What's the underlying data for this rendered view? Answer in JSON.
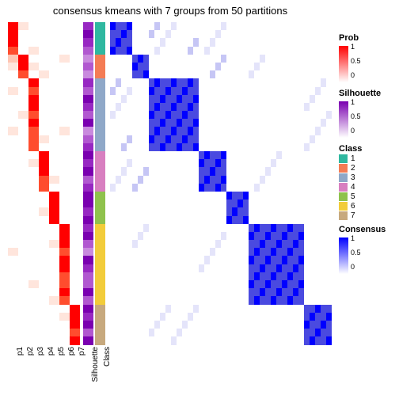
{
  "title": "consensus kmeans with 7 groups from 50 partitions",
  "title_fontsize": 13,
  "layout": {
    "n_rows": 40,
    "prob_cols": 7,
    "cell_h": 10.2,
    "prob_col_w": 13,
    "sil_col_w": 13,
    "class_col_w": 13,
    "heatmap_col_w": 7.0,
    "gap_after_prob": 4,
    "gap_after_sil": 2,
    "gap_after_class": 6
  },
  "palettes": {
    "prob": [
      "#ffffff",
      "#ffe5dc",
      "#ffc5b3",
      "#ffa18a",
      "#ff7a5c",
      "#ff4d2e",
      "#ff0000"
    ],
    "silhouette": [
      "#ffffff",
      "#f0e0f5",
      "#ddb8ea",
      "#c98ade",
      "#b158d0",
      "#9728c2",
      "#7a00b0"
    ],
    "consensus": [
      "#ffffff",
      "#e4e4fa",
      "#c6c6f5",
      "#a4a4ef",
      "#7d7de8",
      "#4a4ae0",
      "#0000ff"
    ]
  },
  "class_colors": {
    "1": "#2fb8a0",
    "2": "#f47c55",
    "3": "#8fa8c8",
    "4": "#d87fc0",
    "5": "#8fc24d",
    "6": "#f2cc3a",
    "7": "#c7a97e"
  },
  "group_sizes": [
    4,
    3,
    9,
    5,
    4,
    10,
    5
  ],
  "prob_matrix": [
    [
      6,
      1,
      0,
      0,
      0,
      0,
      0
    ],
    [
      6,
      0,
      0,
      0,
      0,
      0,
      0
    ],
    [
      6,
      0,
      0,
      0,
      0,
      0,
      0
    ],
    [
      5,
      0,
      1,
      0,
      0,
      0,
      0
    ],
    [
      2,
      6,
      0,
      0,
      0,
      1,
      0
    ],
    [
      1,
      6,
      1,
      0,
      0,
      0,
      0
    ],
    [
      0,
      5,
      0,
      1,
      0,
      0,
      0
    ],
    [
      0,
      0,
      6,
      0,
      0,
      0,
      0
    ],
    [
      1,
      0,
      5,
      0,
      0,
      0,
      0
    ],
    [
      0,
      0,
      6,
      0,
      0,
      0,
      0
    ],
    [
      0,
      0,
      6,
      0,
      0,
      0,
      0
    ],
    [
      0,
      1,
      5,
      0,
      0,
      0,
      0
    ],
    [
      0,
      0,
      6,
      0,
      0,
      0,
      0
    ],
    [
      1,
      0,
      5,
      0,
      0,
      1,
      0
    ],
    [
      0,
      0,
      5,
      1,
      0,
      0,
      0
    ],
    [
      0,
      0,
      5,
      0,
      0,
      0,
      0
    ],
    [
      0,
      0,
      0,
      6,
      0,
      0,
      0
    ],
    [
      0,
      0,
      1,
      6,
      0,
      0,
      0
    ],
    [
      0,
      0,
      0,
      6,
      0,
      0,
      0
    ],
    [
      0,
      0,
      0,
      5,
      1,
      0,
      0
    ],
    [
      0,
      0,
      0,
      5,
      0,
      0,
      0
    ],
    [
      0,
      0,
      0,
      0,
      6,
      0,
      0
    ],
    [
      0,
      0,
      0,
      0,
      6,
      0,
      0
    ],
    [
      0,
      0,
      0,
      1,
      6,
      0,
      0
    ],
    [
      0,
      0,
      0,
      0,
      6,
      0,
      0
    ],
    [
      0,
      0,
      0,
      0,
      0,
      6,
      0
    ],
    [
      0,
      0,
      0,
      0,
      0,
      6,
      0
    ],
    [
      0,
      0,
      0,
      0,
      1,
      6,
      0
    ],
    [
      1,
      0,
      0,
      0,
      0,
      5,
      0
    ],
    [
      0,
      0,
      0,
      0,
      0,
      6,
      0
    ],
    [
      0,
      0,
      0,
      0,
      0,
      6,
      0
    ],
    [
      0,
      0,
      0,
      0,
      0,
      5,
      0
    ],
    [
      0,
      0,
      1,
      0,
      0,
      5,
      0
    ],
    [
      0,
      0,
      0,
      0,
      0,
      6,
      0
    ],
    [
      0,
      0,
      0,
      0,
      1,
      5,
      0
    ],
    [
      0,
      0,
      0,
      0,
      0,
      0,
      6
    ],
    [
      0,
      0,
      0,
      0,
      0,
      1,
      6
    ],
    [
      0,
      0,
      0,
      0,
      0,
      0,
      6
    ],
    [
      0,
      0,
      0,
      0,
      0,
      0,
      5
    ],
    [
      0,
      0,
      0,
      0,
      0,
      0,
      6
    ]
  ],
  "silhouette": [
    5,
    6,
    5,
    4,
    3,
    4,
    3,
    5,
    4,
    6,
    5,
    4,
    6,
    3,
    4,
    5,
    6,
    5,
    6,
    4,
    5,
    6,
    6,
    5,
    6,
    5,
    6,
    4,
    3,
    6,
    5,
    4,
    4,
    6,
    4,
    6,
    5,
    6,
    4,
    6
  ],
  "consensus_noise": [
    [
      0,
      0,
      0,
      0,
      0,
      0,
      0,
      0,
      0,
      1,
      0,
      0,
      0,
      0,
      0,
      2,
      1,
      0,
      0,
      0,
      0,
      0,
      0,
      0,
      0,
      0,
      0,
      0,
      0,
      0,
      0,
      0,
      0,
      0,
      0,
      0,
      0,
      0,
      0,
      0
    ],
    [
      0,
      0,
      0,
      0,
      1,
      0,
      0,
      0,
      0,
      0,
      0,
      0,
      0,
      0,
      0,
      0,
      0,
      0,
      0,
      0,
      2,
      0,
      0,
      0,
      0,
      0,
      1,
      0,
      0,
      0,
      0,
      0,
      0,
      0,
      0,
      0,
      0,
      0,
      0,
      0
    ],
    [
      0,
      0,
      0,
      0,
      0,
      0,
      0,
      0,
      0,
      0,
      0,
      0,
      0,
      0,
      0,
      0,
      0,
      0,
      0,
      0,
      0,
      0,
      0,
      0,
      0,
      0,
      0,
      0,
      0,
      0,
      0,
      0,
      0,
      0,
      0,
      1,
      0,
      0,
      0,
      0
    ],
    [
      0,
      0,
      0,
      0,
      0,
      0,
      0,
      0,
      0,
      0,
      0,
      0,
      0,
      2,
      0,
      0,
      0,
      0,
      0,
      0,
      0,
      0,
      0,
      0,
      0,
      0,
      0,
      0,
      0,
      0,
      0,
      1,
      0,
      0,
      0,
      0,
      0,
      0,
      0,
      0
    ],
    [
      0,
      0,
      0,
      0,
      0,
      0,
      0,
      0,
      0,
      0,
      0,
      0,
      0,
      0,
      0,
      0,
      0,
      0,
      0,
      0,
      0,
      0,
      0,
      0,
      0,
      0,
      0,
      0,
      0,
      0,
      0,
      0,
      0,
      0,
      0,
      0,
      0,
      0,
      0,
      0
    ],
    [
      0,
      1,
      0,
      0,
      0,
      0,
      0,
      0,
      0,
      0,
      0,
      0,
      0,
      0,
      0,
      0,
      0,
      0,
      0,
      0,
      0,
      0,
      0,
      0,
      0,
      0,
      0,
      0,
      0,
      0,
      0,
      0,
      0,
      0,
      0,
      0,
      0,
      0,
      0,
      0
    ],
    [
      0,
      0,
      0,
      0,
      0,
      0,
      0,
      0,
      0,
      0,
      0,
      0,
      0,
      0,
      0,
      0,
      0,
      0,
      0,
      0,
      0,
      0,
      0,
      0,
      0,
      0,
      0,
      0,
      0,
      0,
      0,
      0,
      0,
      0,
      0,
      0,
      0,
      0,
      0,
      0
    ]
  ],
  "x_labels": [
    "p1",
    "p2",
    "p3",
    "p4",
    "p5",
    "p6",
    "p7",
    "Silhouette",
    "Class"
  ],
  "legends": {
    "Prob": {
      "ticks": [
        "0",
        "0.5",
        "1"
      ]
    },
    "Silhouette": {
      "ticks": [
        "0",
        "0.5",
        "1"
      ]
    },
    "Class": {
      "items": [
        "1",
        "2",
        "3",
        "4",
        "5",
        "6",
        "7"
      ]
    },
    "Consensus": {
      "ticks": [
        "0",
        "0.5",
        "1"
      ]
    }
  }
}
